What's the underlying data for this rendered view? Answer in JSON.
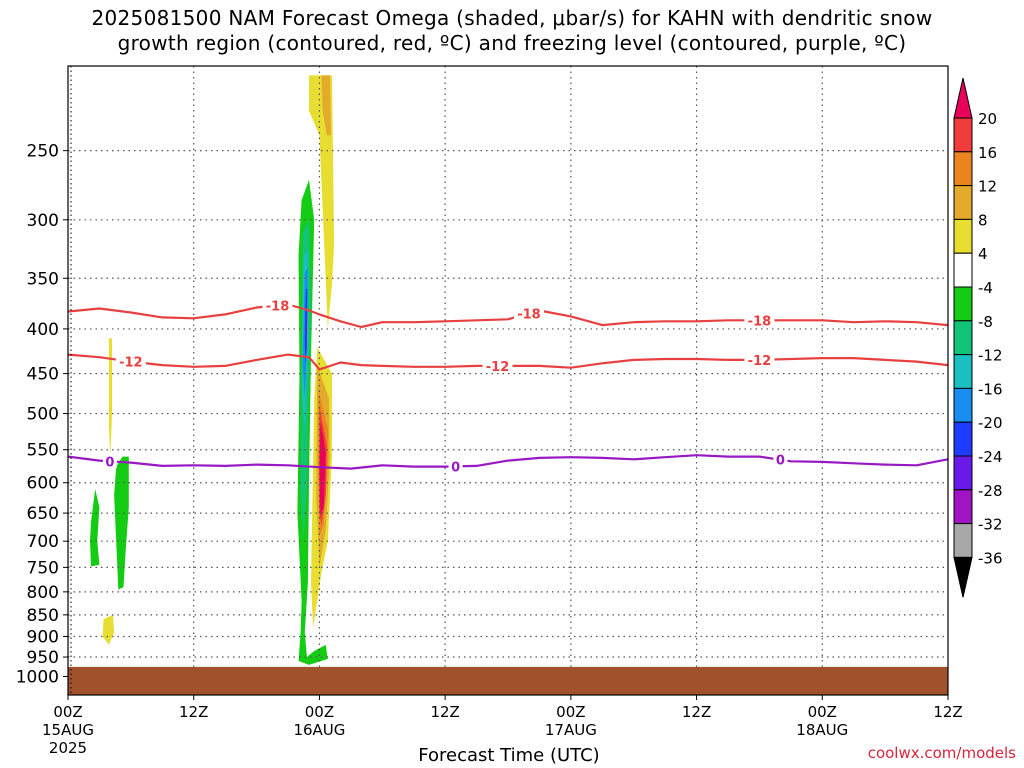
{
  "title": {
    "line1": "2025081500 NAM Forecast Omega (shaded, μbar/s) for KAHN with dendritic snow",
    "line2": "growth region (contoured, red, ºC) and freezing level (contoured, purple, ºC)"
  },
  "credit": "coolwx.com/models",
  "chart_data": {
    "type": "heatmap",
    "xlabel": "Forecast Time (UTC)",
    "ylabel": "",
    "x_ticks": [
      {
        "hour": 0,
        "label": "00Z",
        "sub1": "15AUG",
        "sub2": "2025"
      },
      {
        "hour": 12,
        "label": "12Z",
        "sub1": "",
        "sub2": ""
      },
      {
        "hour": 24,
        "label": "00Z",
        "sub1": "16AUG",
        "sub2": ""
      },
      {
        "hour": 36,
        "label": "12Z",
        "sub1": "",
        "sub2": ""
      },
      {
        "hour": 48,
        "label": "00Z",
        "sub1": "17AUG",
        "sub2": ""
      },
      {
        "hour": 60,
        "label": "12Z",
        "sub1": "",
        "sub2": ""
      },
      {
        "hour": 72,
        "label": "00Z",
        "sub1": "18AUG",
        "sub2": ""
      },
      {
        "hour": 84,
        "label": "12Z",
        "sub1": "",
        "sub2": ""
      }
    ],
    "xlim": [
      0,
      84
    ],
    "y_ticks": [
      250,
      300,
      350,
      400,
      450,
      500,
      550,
      600,
      650,
      700,
      750,
      800,
      850,
      900,
      950,
      1000
    ],
    "ylim": [
      1050,
      200
    ],
    "grid": true,
    "colorbar": {
      "labels": [
        "20",
        "16",
        "12",
        "8",
        "4",
        "-4",
        "-8",
        "-12",
        "-16",
        "-20",
        "-24",
        "-28",
        "-32",
        "-36"
      ],
      "colors": [
        "#e8005a",
        "#f03c3c",
        "#ec8420",
        "#e4aa2c",
        "#e8de32",
        "#ffffff",
        "#14cc14",
        "#12c47a",
        "#1ac0c0",
        "#1a8ef0",
        "#1e3cff",
        "#6a1ae8",
        "#a014c4",
        "#a8a8a8",
        "#000000"
      ]
    },
    "shaded_regions": [
      {
        "value": 6,
        "color": "#e8de32",
        "points": [
          [
            23.0,
            205
          ],
          [
            25.2,
            205
          ],
          [
            25.4,
            320
          ],
          [
            25.2,
            355
          ],
          [
            24.8,
            400
          ],
          [
            24.5,
            330
          ],
          [
            24.0,
            240
          ],
          [
            23.0,
            225
          ]
        ]
      },
      {
        "value": 10,
        "color": "#e4aa2c",
        "points": [
          [
            24.2,
            205
          ],
          [
            25.0,
            205
          ],
          [
            25.1,
            240
          ],
          [
            24.7,
            240
          ],
          [
            24.3,
            225
          ]
        ]
      },
      {
        "value": 6,
        "color": "#e8de32",
        "points": [
          [
            23.8,
            420
          ],
          [
            25.2,
            450
          ],
          [
            25.2,
            560
          ],
          [
            24.8,
            700
          ],
          [
            24.2,
            760
          ],
          [
            23.4,
            880
          ],
          [
            23.2,
            780
          ],
          [
            23.5,
            480
          ]
        ]
      },
      {
        "value": 10,
        "color": "#e4aa2c",
        "points": [
          [
            23.8,
            440
          ],
          [
            24.9,
            480
          ],
          [
            25.0,
            560
          ],
          [
            24.6,
            680
          ],
          [
            24.0,
            750
          ],
          [
            23.7,
            620
          ]
        ]
      },
      {
        "value": 14,
        "color": "#ec8420",
        "points": [
          [
            23.9,
            470
          ],
          [
            24.8,
            520
          ],
          [
            24.8,
            570
          ],
          [
            24.4,
            670
          ],
          [
            24.0,
            690
          ],
          [
            23.9,
            560
          ]
        ]
      },
      {
        "value": 18,
        "color": "#f03c3c",
        "points": [
          [
            24.0,
            490
          ],
          [
            24.7,
            545
          ],
          [
            24.6,
            620
          ],
          [
            24.2,
            670
          ],
          [
            24.0,
            650
          ]
        ]
      },
      {
        "value": 22,
        "color": "#e8005a",
        "points": [
          [
            24.1,
            510
          ],
          [
            24.6,
            555
          ],
          [
            24.4,
            640
          ],
          [
            24.1,
            655
          ],
          [
            24.0,
            580
          ]
        ]
      },
      {
        "value": -6,
        "color": "#14cc14",
        "points": [
          [
            22.3,
            285
          ],
          [
            23.0,
            270
          ],
          [
            23.5,
            300
          ],
          [
            23.2,
            430
          ],
          [
            23.0,
            600
          ],
          [
            22.9,
            780
          ],
          [
            22.6,
            890
          ],
          [
            22.8,
            950
          ],
          [
            23.5,
            935
          ],
          [
            24.6,
            920
          ],
          [
            24.8,
            955
          ],
          [
            23.0,
            970
          ],
          [
            22.0,
            960
          ],
          [
            22.2,
            890
          ],
          [
            22.3,
            820
          ],
          [
            21.9,
            650
          ],
          [
            22.1,
            450
          ],
          [
            22.0,
            330
          ]
        ]
      },
      {
        "value": -10,
        "color": "#12c47a",
        "points": [
          [
            22.4,
            310
          ],
          [
            23.0,
            300
          ],
          [
            23.2,
            380
          ],
          [
            22.9,
            500
          ],
          [
            22.8,
            600
          ],
          [
            22.5,
            700
          ],
          [
            22.2,
            610
          ],
          [
            22.3,
            440
          ]
        ]
      },
      {
        "value": -14,
        "color": "#1ac0c0",
        "points": [
          [
            22.5,
            330
          ],
          [
            22.9,
            325
          ],
          [
            22.9,
            410
          ],
          [
            22.6,
            520
          ],
          [
            22.3,
            470
          ],
          [
            22.4,
            380
          ]
        ]
      },
      {
        "value": -18,
        "color": "#1a8ef0",
        "points": [
          [
            22.6,
            345
          ],
          [
            22.9,
            340
          ],
          [
            22.8,
            420
          ],
          [
            22.6,
            480
          ],
          [
            22.4,
            440
          ]
        ]
      },
      {
        "value": -22,
        "color": "#1e3cff",
        "points": [
          [
            22.7,
            360
          ],
          [
            22.85,
            360
          ],
          [
            22.8,
            420
          ],
          [
            22.65,
            440
          ],
          [
            22.6,
            410
          ]
        ]
      },
      {
        "value": -26,
        "color": "#6a1ae8",
        "points": [
          [
            22.75,
            375
          ],
          [
            22.82,
            378
          ],
          [
            22.78,
            420
          ],
          [
            22.7,
            430
          ],
          [
            22.7,
            400
          ]
        ]
      },
      {
        "value": 6,
        "color": "#e8de32",
        "points": [
          [
            3.9,
            410
          ],
          [
            4.2,
            410
          ],
          [
            4.2,
            500
          ],
          [
            4.05,
            560
          ],
          [
            3.9,
            520
          ]
        ]
      },
      {
        "value": 6,
        "color": "#e8de32",
        "points": [
          [
            3.4,
            860
          ],
          [
            4.3,
            850
          ],
          [
            4.4,
            890
          ],
          [
            3.9,
            920
          ],
          [
            3.3,
            900
          ]
        ]
      },
      {
        "value": -6,
        "color": "#14cc14",
        "points": [
          [
            2.2,
            665
          ],
          [
            2.6,
            610
          ],
          [
            3.0,
            640
          ],
          [
            2.8,
            700
          ],
          [
            3.0,
            745
          ],
          [
            2.2,
            748
          ],
          [
            2.1,
            700
          ]
        ]
      },
      {
        "value": -6,
        "color": "#14cc14",
        "points": [
          [
            4.6,
            575
          ],
          [
            5.2,
            560
          ],
          [
            5.8,
            560
          ],
          [
            5.8,
            640
          ],
          [
            5.5,
            720
          ],
          [
            5.3,
            790
          ],
          [
            4.8,
            795
          ],
          [
            4.6,
            700
          ],
          [
            4.4,
            620
          ]
        ]
      }
    ],
    "contours": [
      {
        "label": "-18",
        "color": "#e84040",
        "x": [
          0,
          3,
          6,
          9,
          12,
          15,
          18,
          21,
          23,
          24,
          26,
          28,
          30,
          33,
          36,
          39,
          42,
          45,
          48,
          51,
          54,
          57,
          60,
          63,
          66,
          69,
          72,
          75,
          78,
          81,
          84
        ],
        "y": [
          382,
          379,
          383,
          388,
          389,
          385,
          378,
          375,
          381,
          385,
          392,
          398,
          393,
          393,
          392,
          391,
          390,
          381,
          387,
          396,
          393,
          392,
          392,
          391,
          391,
          391,
          391,
          393,
          392,
          393,
          396
        ],
        "labels_at": [
          20,
          44,
          66
        ]
      },
      {
        "label": "-12",
        "color": "#e84040",
        "x": [
          0,
          3,
          6,
          9,
          12,
          15,
          18,
          21,
          23,
          24,
          26,
          28,
          30,
          33,
          36,
          39,
          42,
          45,
          48,
          51,
          54,
          57,
          60,
          63,
          66,
          69,
          72,
          75,
          78,
          81,
          84
        ],
        "y": [
          428,
          431,
          436,
          440,
          442,
          441,
          434,
          428,
          431,
          445,
          437,
          440,
          441,
          442,
          442,
          441,
          441,
          441,
          443,
          438,
          434,
          433,
          433,
          434,
          434,
          433,
          432,
          432,
          434,
          436,
          440
        ],
        "labels_at": [
          6,
          41,
          66
        ]
      },
      {
        "label": "0",
        "color": "#9818c4",
        "x": [
          0,
          3,
          6,
          9,
          12,
          15,
          18,
          21,
          24,
          27,
          30,
          33,
          36,
          39,
          42,
          45,
          48,
          51,
          54,
          57,
          60,
          63,
          66,
          69,
          72,
          75,
          78,
          81,
          84
        ],
        "y": [
          560,
          566,
          569,
          574,
          573,
          574,
          572,
          573,
          576,
          578,
          573,
          575,
          575,
          574,
          566,
          562,
          561,
          562,
          564,
          561,
          558,
          560,
          560,
          567,
          568,
          570,
          572,
          573,
          564
        ],
        "labels_at": [
          4,
          37,
          68
        ]
      }
    ],
    "ground": {
      "from": 975,
      "to": 1050,
      "color": "#a0522d"
    }
  }
}
